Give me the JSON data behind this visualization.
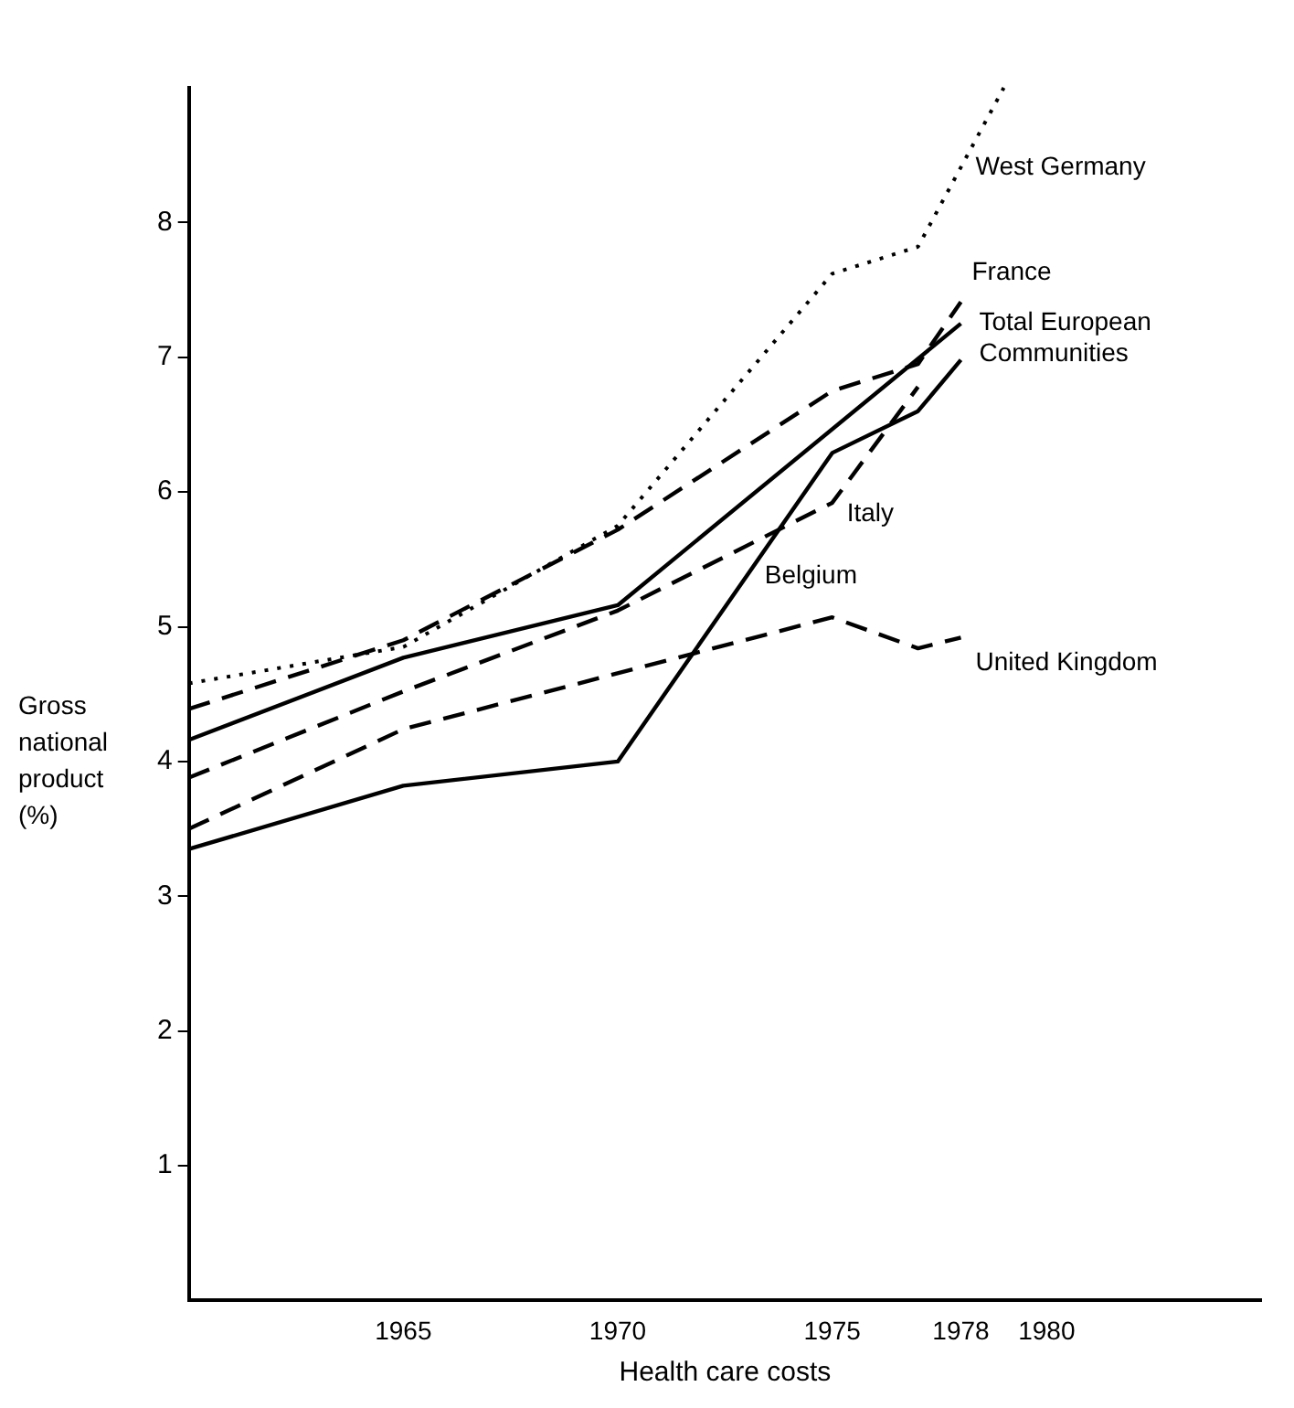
{
  "chart_data": {
    "type": "line",
    "xlabel": "Health care costs",
    "ylabel": "Gross national product (%)",
    "xlim": [
      1960,
      1985
    ],
    "xticks": [
      1965,
      1970,
      1975,
      1978,
      1980
    ],
    "ylim": [
      0,
      9
    ],
    "yticks": [
      1,
      2,
      3,
      4,
      5,
      6,
      7,
      8
    ],
    "grid": false,
    "legend": false,
    "marker": "none",
    "series": [
      {
        "name": "West Germany",
        "color": "#000000",
        "line_style": "dotted",
        "x": [
          1960,
          1965,
          1970,
          1975,
          1977,
          1979
        ],
        "values": [
          4.58,
          4.85,
          5.75,
          7.62,
          7.82,
          9.0
        ]
      },
      {
        "name": "France",
        "color": "#000000",
        "line_style": "dashed",
        "x": [
          1960,
          1965,
          1970,
          1975,
          1977,
          1978
        ],
        "values": [
          4.39,
          4.9,
          5.72,
          6.75,
          6.95,
          7.41
        ]
      },
      {
        "name": "Total European Communities",
        "color": "#000000",
        "line_style": "solid",
        "x": [
          1960,
          1965,
          1970,
          1978
        ],
        "values": [
          4.16,
          4.77,
          5.16,
          7.25
        ]
      },
      {
        "name": "Italy",
        "color": "#000000",
        "line_style": "dashed",
        "x": [
          1960,
          1965,
          1970,
          1975,
          1977
        ],
        "values": [
          3.88,
          4.52,
          5.12,
          5.92,
          6.78
        ]
      },
      {
        "name": "United Kingdom",
        "color": "#000000",
        "line_style": "dashed",
        "x": [
          1960,
          1965,
          1975,
          1977,
          1978
        ],
        "values": [
          3.5,
          4.24,
          5.07,
          4.84,
          4.92
        ]
      },
      {
        "name": "Belgium",
        "color": "#000000",
        "line_style": "solid",
        "x": [
          1960,
          1965,
          1970,
          1975,
          1977,
          1978
        ],
        "values": [
          3.35,
          3.82,
          4.0,
          6.29,
          6.6,
          6.98
        ]
      }
    ]
  }
}
